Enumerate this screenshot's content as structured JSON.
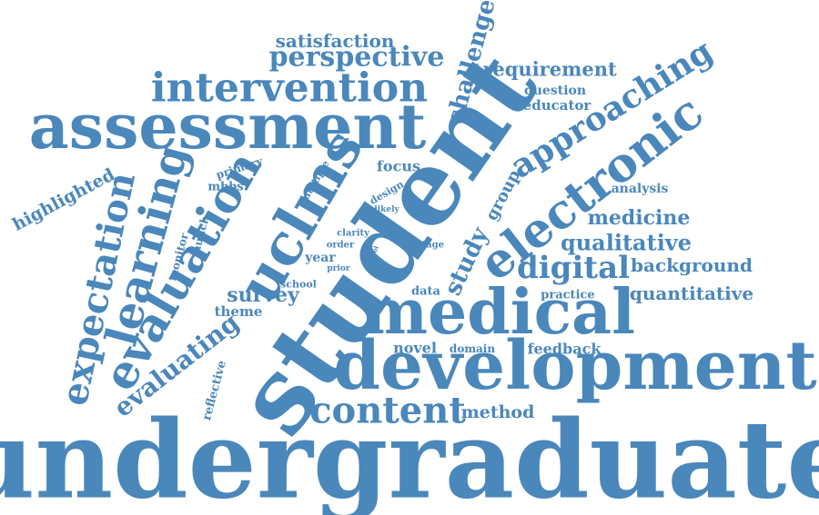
{
  "color": "#4a87bb",
  "words": [
    {
      "text": "undergraduate",
      "weight": 100
    },
    {
      "text": "student",
      "weight": 95
    },
    {
      "text": "development",
      "weight": 70
    },
    {
      "text": "medical",
      "weight": 65
    },
    {
      "text": "assessment",
      "weight": 64
    },
    {
      "text": "electronic",
      "weight": 55
    },
    {
      "text": "uclms",
      "weight": 52
    },
    {
      "text": "evaluation",
      "weight": 46
    },
    {
      "text": "learning",
      "weight": 44
    },
    {
      "text": "expectation",
      "weight": 40
    },
    {
      "text": "intervention",
      "weight": 39
    },
    {
      "text": "approaching",
      "weight": 37
    },
    {
      "text": "content",
      "weight": 36
    },
    {
      "text": "digital",
      "weight": 30
    },
    {
      "text": "perspective",
      "weight": 28
    },
    {
      "text": "study",
      "weight": 27
    },
    {
      "text": "evaluating",
      "weight": 26
    },
    {
      "text": "challenge",
      "weight": 25
    },
    {
      "text": "qualitative",
      "weight": 24
    },
    {
      "text": "medicine",
      "weight": 22
    },
    {
      "text": "survey",
      "weight": 22
    },
    {
      "text": "requirement",
      "weight": 21
    },
    {
      "text": "satisfaction",
      "weight": 20
    },
    {
      "text": "background",
      "weight": 20
    },
    {
      "text": "quantitative",
      "weight": 20
    },
    {
      "text": "highlighted",
      "weight": 19
    },
    {
      "text": "method",
      "weight": 19
    },
    {
      "text": "group",
      "weight": 18
    },
    {
      "text": "focus",
      "weight": 16
    },
    {
      "text": "novel",
      "weight": 16
    },
    {
      "text": "feedback",
      "weight": 16
    },
    {
      "text": "theme",
      "weight": 15
    },
    {
      "text": "educator",
      "weight": 15
    },
    {
      "text": "question",
      "weight": 14
    },
    {
      "text": "analysis",
      "weight": 14
    },
    {
      "text": "year",
      "weight": 14
    },
    {
      "text": "reflective",
      "weight": 13
    },
    {
      "text": "practice",
      "weight": 13
    },
    {
      "text": "mbbs",
      "weight": 13
    },
    {
      "text": "data",
      "weight": 13
    },
    {
      "text": "domain",
      "weight": 12
    },
    {
      "text": "launch",
      "weight": 12
    },
    {
      "text": "monitor",
      "weight": 12
    },
    {
      "text": "primary",
      "weight": 12
    },
    {
      "text": "multiple",
      "weight": 11
    },
    {
      "text": "school",
      "weight": 11
    },
    {
      "text": "design",
      "weight": 11
    },
    {
      "text": "clarity",
      "weight": 10
    },
    {
      "text": "order",
      "weight": 10
    },
    {
      "text": "stage",
      "weight": 10
    },
    {
      "text": "likely",
      "weight": 9
    },
    {
      "text": "prior",
      "weight": 9
    },
    {
      "text": "tool",
      "weight": 7
    }
  ]
}
